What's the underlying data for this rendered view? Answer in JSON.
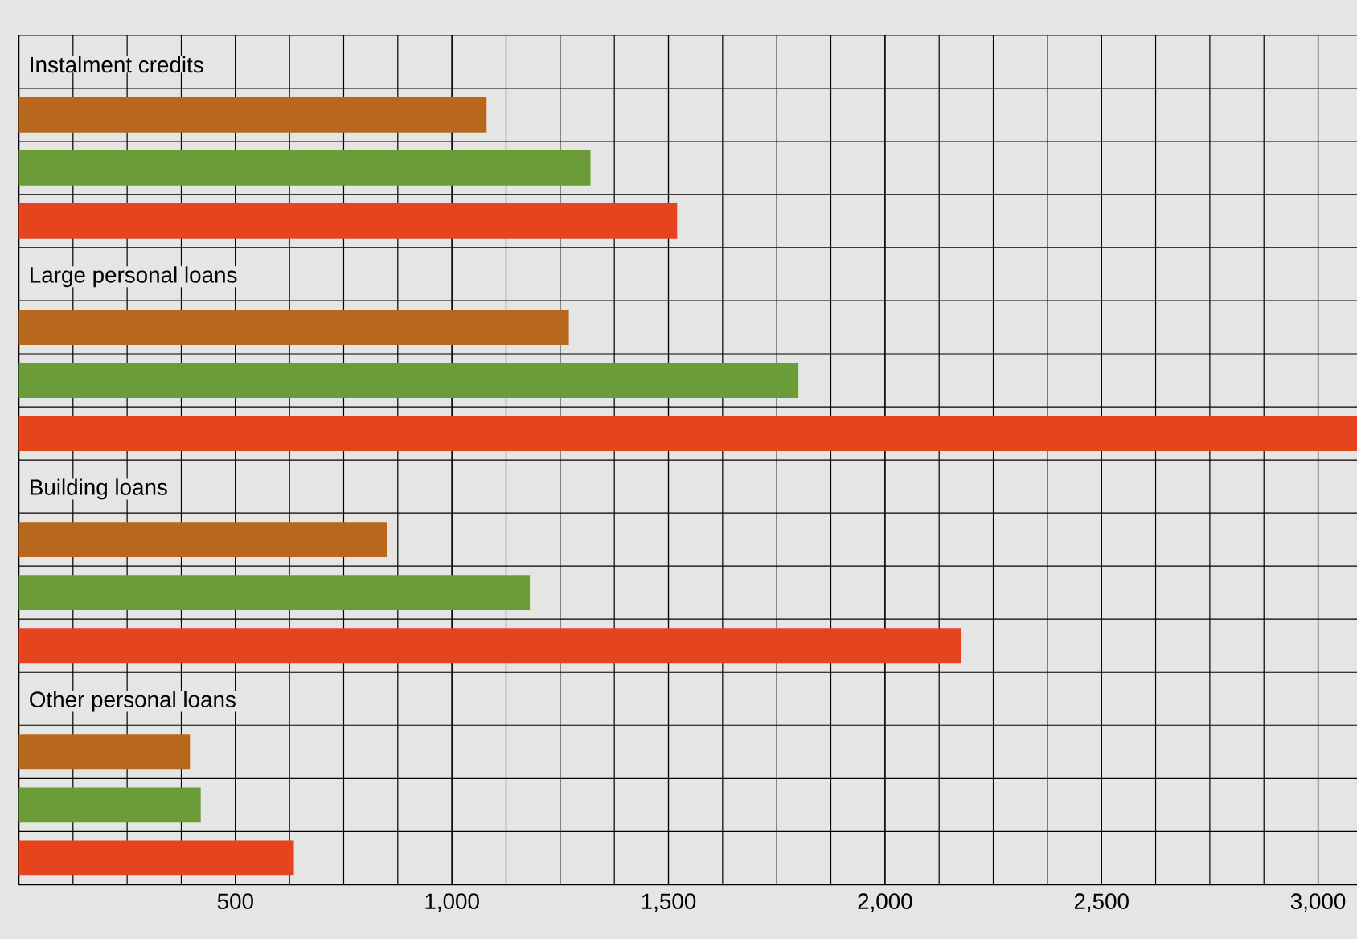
{
  "chart_data": {
    "type": "bar",
    "orientation": "horizontal",
    "categories": [
      "Instalment credits",
      "Large personal loans",
      "Building loans",
      "Other personal loans"
    ],
    "series": [
      {
        "color": "#b8681e",
        "values": [
          1080,
          1270,
          850,
          395
        ]
      },
      {
        "color": "#6c9c3a",
        "values": [
          1320,
          1800,
          1180,
          420
        ]
      },
      {
        "color": "#e6431f",
        "values": [
          1520,
          3090,
          2175,
          635
        ]
      }
    ],
    "xlim": [
      0,
      3090
    ],
    "xticks": [
      500,
      {
        "value": 1000,
        "label": "1,000"
      },
      {
        "value": 1500,
        "label": "1,500"
      },
      {
        "value": 2000,
        "label": "2,000"
      },
      {
        "value": 2500,
        "label": "2,500"
      },
      {
        "value": 3000,
        "label": "3,000"
      }
    ],
    "grid": true
  }
}
